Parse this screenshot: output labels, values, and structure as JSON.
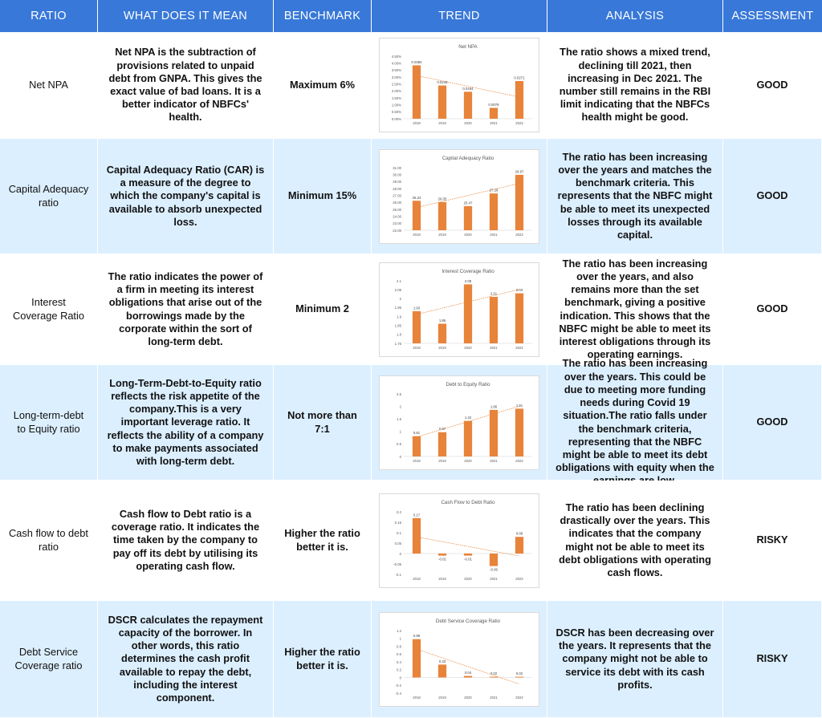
{
  "headers": [
    "RATIO",
    "WHAT DOES IT MEAN",
    "BENCHMARK",
    "TREND",
    "ANALYSIS",
    "ASSESSMENT"
  ],
  "rows": [
    {
      "ratio": "Net NPA",
      "meaning": "Net NPA is the subtraction of provisions related to unpaid debt from GNPA. This gives the exact value of bad loans. It is a better indicator of NBFCs' health.",
      "benchmark": "Maximum 6%",
      "analysis": "The ratio shows a mixed trend, declining till 2021, then increasing in Dec 2021. The number still remains in the RBI limit indicating that the NBFCs health might be good.",
      "assessment": "GOOD"
    },
    {
      "ratio": "Capital Adequacy ratio",
      "meaning": "Capital Adequacy Ratio (CAR) is a measure of the degree to which the company's capital is available to absorb unexpected loss.",
      "benchmark": "Minimum 15%",
      "analysis": "The ratio has been increasing over the years and matches the benchmark criteria. This represents that the NBFC might be able to meet its unexpected losses through its available capital.",
      "assessment": "GOOD"
    },
    {
      "ratio": "Interest Coverage Ratio",
      "meaning": "The ratio indicates the power of a firm in meeting its interest obligations that arise out of the borrowings made by the corporate within the sort of long-term debt.",
      "benchmark": "Minimum 2",
      "analysis": "The ratio has been increasing over the years, and also remains more than the set benchmark, giving a positive indication. This shows that the NBFC might be able to meet its interest obligations through its operating earnings.",
      "assessment": "GOOD"
    },
    {
      "ratio": "Long-term-debt to Equity ratio",
      "meaning": "Long-Term-Debt-to-Equity ratio reflects the risk appetite of the company.This is a very important leverage ratio. It reflects the ability of a company to make payments associated with long-term debt.",
      "benchmark": "Not more than 7:1",
      "analysis": "The ratio has been increasing over the years. This could be due to meeting more funding needs during Covid 19 situation.The ratio falls under the benchmark criteria, representing that the NBFC might be able to meet its debt obligations with equity when the earnings are low.",
      "assessment": "GOOD"
    },
    {
      "ratio": "Cash flow to debt ratio",
      "meaning": "Cash flow to Debt ratio is a coverage ratio. It indicates the time taken by the company to pay off its debt by utilising its operating cash flow.",
      "benchmark": "Higher the ratio better it is.",
      "analysis": "The ratio has been declining drastically over the years. This indicates that the company might not be able to meet its debt obligations with operating cash flows.",
      "assessment": "RISKY"
    },
    {
      "ratio": "Debt Service Coverage ratio",
      "meaning": "DSCR calculates the repayment capacity of the borrower. In other words, this ratio determines the cash profit available to repay the debt, including the interest component.",
      "benchmark": "Higher the ratio better it is.",
      "analysis": "DSCR has been decreasing over the years. It represents that the company might not be able to service its debt with its cash profits.",
      "assessment": "RISKY"
    }
  ],
  "bar_color": "#e8833a",
  "trend_color": "#e8833a",
  "header_color": "#3878d8",
  "stripe_color": "#dcefff",
  "chart_data": [
    {
      "type": "bar",
      "title": "Net NPA",
      "categories": [
        "2018",
        "2019",
        "2020",
        "2021",
        "2022"
      ],
      "values": [
        0.0384,
        0.0239,
        0.0194,
        0.0078,
        0.0271
      ],
      "labels": [
        "0.0384",
        "0.0239",
        "0.0194",
        "0.0078",
        "0.0271"
      ],
      "ylim": [
        0,
        0.045
      ],
      "ticks": [
        "0.00%",
        "0.50%",
        "1.00%",
        "1.50%",
        "2.00%",
        "2.50%",
        "3.00%",
        "3.50%",
        "4.00%",
        "4.50%"
      ],
      "tick_values": [
        0,
        0.005,
        0.01,
        0.015,
        0.02,
        0.025,
        0.03,
        0.035,
        0.04,
        0.045
      ],
      "trendline": true
    },
    {
      "type": "bar",
      "title": "Capital Adequacy Ratio",
      "categories": [
        "2018",
        "2019",
        "2020",
        "2021",
        "2022"
      ],
      "values": [
        26.24,
        26.05,
        25.47,
        27.29,
        29.97
      ],
      "labels": [
        "26.24",
        "26.05",
        "25.47",
        "27.29",
        "29.97"
      ],
      "ylim": [
        22,
        31
      ],
      "ticks": [
        "22.00",
        "23.00",
        "24.00",
        "25.00",
        "26.00",
        "27.00",
        "28.00",
        "29.00",
        "30.00",
        "31.00"
      ],
      "tick_values": [
        22,
        23,
        24,
        25,
        26,
        27,
        28,
        29,
        30,
        31
      ],
      "trendline": true
    },
    {
      "type": "bar",
      "title": "Interest Coverage Ratio",
      "categories": [
        "2018",
        "2019",
        "2020",
        "2021",
        "2022"
      ],
      "values": [
        1.93,
        1.86,
        2.08,
        2.01,
        2.03
      ],
      "labels": [
        "1.93",
        "1.86",
        "2.08",
        "2.01",
        "2.03"
      ],
      "ylim": [
        1.75,
        2.1
      ],
      "ticks": [
        "1.75",
        "1.8",
        "1.85",
        "1.9",
        "1.95",
        "2",
        "2.05",
        "2.1"
      ],
      "tick_values": [
        1.75,
        1.8,
        1.85,
        1.9,
        1.95,
        2.0,
        2.05,
        2.1
      ],
      "trendline": true
    },
    {
      "type": "bar",
      "title": "Debt to Equity Ratio",
      "categories": [
        "2018",
        "2019",
        "2020",
        "2021",
        "2022"
      ],
      "values": [
        0.81,
        0.97,
        1.42,
        1.86,
        1.91
      ],
      "labels": [
        "0.81",
        "0.97",
        "1.42",
        "1.86",
        "1.91"
      ],
      "ylim": [
        0,
        2.5
      ],
      "ticks": [
        "0",
        "0.5",
        "1",
        "1.5",
        "2",
        "2.5"
      ],
      "tick_values": [
        0,
        0.5,
        1,
        1.5,
        2,
        2.5
      ],
      "trendline": true
    },
    {
      "type": "bar",
      "title": "Cash Flow to Debt Ratio",
      "categories": [
        "2018",
        "2019",
        "2020",
        "2021",
        "2022"
      ],
      "values": [
        0.17,
        -0.01,
        -0.01,
        -0.06,
        0.08
      ],
      "labels": [
        "0.17",
        "-0.01",
        "-0.01",
        "-0.06",
        "0.08"
      ],
      "ylim": [
        -0.1,
        0.2
      ],
      "ticks": [
        "-0.1",
        "-0.05",
        "0",
        "0.05",
        "0.1",
        "0.15",
        "0.2"
      ],
      "tick_values": [
        -0.1,
        -0.05,
        0,
        0.05,
        0.1,
        0.15,
        0.2
      ],
      "trendline": true
    },
    {
      "type": "bar",
      "title": "Debt Service Coverage Ratio",
      "categories": [
        "2018",
        "2019",
        "2020",
        "2021",
        "2022"
      ],
      "values": [
        0.98,
        0.33,
        0.04,
        0.02,
        0.02
      ],
      "labels": [
        "0.98",
        "0.33",
        "0.04",
        "0.02",
        "0.02"
      ],
      "ylim": [
        -0.4,
        1.2
      ],
      "ticks": [
        "-0.4",
        "-0.2",
        "0",
        "0.2",
        "0.4",
        "0.6",
        "0.8",
        "1",
        "1.2"
      ],
      "tick_values": [
        -0.4,
        -0.2,
        0,
        0.2,
        0.4,
        0.6,
        0.8,
        1.0,
        1.2
      ],
      "trendline": true
    }
  ]
}
